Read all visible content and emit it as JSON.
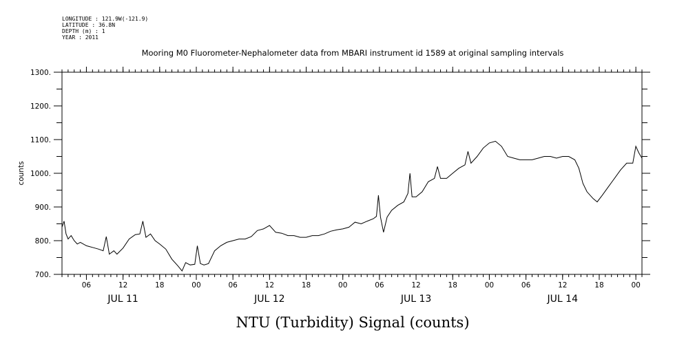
{
  "meta": {
    "longitude": "LONGITUDE : 121.9W(-121.9)",
    "latitude": "LATITUDE : 36.8N",
    "depth": "DEPTH (m) : 1",
    "year": "YEAR : 2011"
  },
  "chart_data": {
    "type": "line",
    "title": "Mooring M0 Fluorometer-Nephalometer data from MBARI instrument id 1589 at original sampling intervals",
    "xlabel": "NTU (Turbidity) Signal (counts)",
    "ylabel": "counts",
    "ylim": [
      700,
      1300
    ],
    "xlim": [
      "2011-07-11T02:00",
      "2011-07-15T01:00"
    ],
    "yticks": [
      700,
      800,
      900,
      1000,
      1100,
      1200,
      1300
    ],
    "ytick_labels": [
      "700.",
      "800.",
      "900.",
      "1000.",
      "1100.",
      "1200.",
      "1300."
    ],
    "xtick_labels": [
      {
        "t": "2011-07-11T06:00",
        "label": "06"
      },
      {
        "t": "2011-07-11T12:00",
        "label": "12"
      },
      {
        "t": "2011-07-11T18:00",
        "label": "18"
      },
      {
        "t": "2011-07-12T00:00",
        "label": "00"
      },
      {
        "t": "2011-07-12T06:00",
        "label": "06"
      },
      {
        "t": "2011-07-12T12:00",
        "label": "12"
      },
      {
        "t": "2011-07-12T18:00",
        "label": "18"
      },
      {
        "t": "2011-07-13T00:00",
        "label": "00"
      },
      {
        "t": "2011-07-13T06:00",
        "label": "06"
      },
      {
        "t": "2011-07-13T12:00",
        "label": "12"
      },
      {
        "t": "2011-07-13T18:00",
        "label": "18"
      },
      {
        "t": "2011-07-14T00:00",
        "label": "00"
      },
      {
        "t": "2011-07-14T06:00",
        "label": "06"
      },
      {
        "t": "2011-07-14T12:00",
        "label": "12"
      },
      {
        "t": "2011-07-14T18:00",
        "label": "18"
      },
      {
        "t": "2011-07-15T00:00",
        "label": "00"
      }
    ],
    "day_labels": [
      {
        "t": "2011-07-11T12:00",
        "label": "JUL 11"
      },
      {
        "t": "2011-07-12T12:00",
        "label": "JUL 12"
      },
      {
        "t": "2011-07-13T12:00",
        "label": "JUL 13"
      },
      {
        "t": "2011-07-14T12:00",
        "label": "JUL 14"
      }
    ],
    "grid": false,
    "series": [
      {
        "points": [
          [
            "2011-07-11T02:00",
            840
          ],
          [
            "2011-07-11T02:20",
            858
          ],
          [
            "2011-07-11T02:40",
            820
          ],
          [
            "2011-07-11T03:00",
            805
          ],
          [
            "2011-07-11T03:30",
            815
          ],
          [
            "2011-07-11T04:00",
            800
          ],
          [
            "2011-07-11T04:30",
            790
          ],
          [
            "2011-07-11T05:00",
            795
          ],
          [
            "2011-07-11T06:00",
            785
          ],
          [
            "2011-07-11T07:00",
            780
          ],
          [
            "2011-07-11T08:00",
            775
          ],
          [
            "2011-07-11T08:45",
            770
          ],
          [
            "2011-07-11T09:15",
            812
          ],
          [
            "2011-07-11T09:45",
            760
          ],
          [
            "2011-07-11T10:30",
            770
          ],
          [
            "2011-07-11T11:00",
            760
          ],
          [
            "2011-07-11T12:00",
            778
          ],
          [
            "2011-07-11T13:00",
            805
          ],
          [
            "2011-07-11T14:00",
            818
          ],
          [
            "2011-07-11T14:45",
            820
          ],
          [
            "2011-07-11T15:15",
            858
          ],
          [
            "2011-07-11T15:45",
            810
          ],
          [
            "2011-07-11T16:30",
            820
          ],
          [
            "2011-07-11T17:15",
            800
          ],
          [
            "2011-07-11T18:00",
            790
          ],
          [
            "2011-07-11T19:00",
            775
          ],
          [
            "2011-07-11T20:00",
            745
          ],
          [
            "2011-07-11T21:00",
            725
          ],
          [
            "2011-07-11T21:40",
            710
          ],
          [
            "2011-07-11T22:15",
            735
          ],
          [
            "2011-07-11T23:00",
            728
          ],
          [
            "2011-07-11T23:45",
            730
          ],
          [
            "2011-07-12T00:10",
            785
          ],
          [
            "2011-07-12T00:40",
            732
          ],
          [
            "2011-07-12T01:15",
            728
          ],
          [
            "2011-07-12T02:00",
            732
          ],
          [
            "2011-07-12T03:00",
            770
          ],
          [
            "2011-07-12T04:00",
            785
          ],
          [
            "2011-07-12T05:00",
            795
          ],
          [
            "2011-07-12T06:00",
            800
          ],
          [
            "2011-07-12T07:00",
            805
          ],
          [
            "2011-07-12T08:00",
            805
          ],
          [
            "2011-07-12T09:00",
            812
          ],
          [
            "2011-07-12T10:00",
            830
          ],
          [
            "2011-07-12T11:00",
            835
          ],
          [
            "2011-07-12T12:00",
            845
          ],
          [
            "2011-07-12T13:00",
            825
          ],
          [
            "2011-07-12T14:00",
            822
          ],
          [
            "2011-07-12T15:00",
            815
          ],
          [
            "2011-07-12T16:00",
            815
          ],
          [
            "2011-07-12T17:00",
            810
          ],
          [
            "2011-07-12T18:00",
            810
          ],
          [
            "2011-07-12T19:00",
            815
          ],
          [
            "2011-07-12T20:00",
            815
          ],
          [
            "2011-07-12T21:00",
            820
          ],
          [
            "2011-07-12T22:00",
            828
          ],
          [
            "2011-07-12T23:00",
            832
          ],
          [
            "2011-07-13T00:00",
            835
          ],
          [
            "2011-07-13T01:00",
            840
          ],
          [
            "2011-07-13T02:00",
            855
          ],
          [
            "2011-07-13T03:00",
            850
          ],
          [
            "2011-07-13T04:00",
            858
          ],
          [
            "2011-07-13T05:00",
            865
          ],
          [
            "2011-07-13T05:30",
            872
          ],
          [
            "2011-07-13T05:50",
            935
          ],
          [
            "2011-07-13T06:10",
            870
          ],
          [
            "2011-07-13T06:40",
            825
          ],
          [
            "2011-07-13T07:15",
            870
          ],
          [
            "2011-07-13T08:00",
            890
          ],
          [
            "2011-07-13T09:00",
            905
          ],
          [
            "2011-07-13T10:00",
            915
          ],
          [
            "2011-07-13T10:40",
            940
          ],
          [
            "2011-07-13T11:00",
            1000
          ],
          [
            "2011-07-13T11:20",
            930
          ],
          [
            "2011-07-13T12:00",
            930
          ],
          [
            "2011-07-13T13:00",
            945
          ],
          [
            "2011-07-13T14:00",
            975
          ],
          [
            "2011-07-13T15:00",
            985
          ],
          [
            "2011-07-13T15:30",
            1020
          ],
          [
            "2011-07-13T16:00",
            985
          ],
          [
            "2011-07-13T17:00",
            985
          ],
          [
            "2011-07-13T18:00",
            1000
          ],
          [
            "2011-07-13T19:00",
            1015
          ],
          [
            "2011-07-13T20:00",
            1025
          ],
          [
            "2011-07-13T20:30",
            1065
          ],
          [
            "2011-07-13T21:00",
            1030
          ],
          [
            "2011-07-13T22:00",
            1050
          ],
          [
            "2011-07-13T23:00",
            1075
          ],
          [
            "2011-07-14T00:00",
            1090
          ],
          [
            "2011-07-14T01:00",
            1095
          ],
          [
            "2011-07-14T02:00",
            1080
          ],
          [
            "2011-07-14T03:00",
            1050
          ],
          [
            "2011-07-14T04:00",
            1045
          ],
          [
            "2011-07-14T05:00",
            1040
          ],
          [
            "2011-07-14T06:00",
            1040
          ],
          [
            "2011-07-14T07:00",
            1040
          ],
          [
            "2011-07-14T08:00",
            1045
          ],
          [
            "2011-07-14T09:00",
            1050
          ],
          [
            "2011-07-14T10:00",
            1050
          ],
          [
            "2011-07-14T11:00",
            1045
          ],
          [
            "2011-07-14T12:00",
            1050
          ],
          [
            "2011-07-14T13:00",
            1050
          ],
          [
            "2011-07-14T14:00",
            1040
          ],
          [
            "2011-07-14T14:40",
            1015
          ],
          [
            "2011-07-14T15:20",
            970
          ],
          [
            "2011-07-14T16:00",
            945
          ],
          [
            "2011-07-14T17:00",
            925
          ],
          [
            "2011-07-14T17:40",
            915
          ],
          [
            "2011-07-14T18:30",
            935
          ],
          [
            "2011-07-14T19:30",
            960
          ],
          [
            "2011-07-14T20:30",
            985
          ],
          [
            "2011-07-14T21:30",
            1010
          ],
          [
            "2011-07-14T22:30",
            1030
          ],
          [
            "2011-07-14T23:30",
            1030
          ],
          [
            "2011-07-15T00:00",
            1080
          ],
          [
            "2011-07-15T00:30",
            1060
          ],
          [
            "2011-07-15T01:00",
            1045
          ]
        ]
      }
    ]
  }
}
